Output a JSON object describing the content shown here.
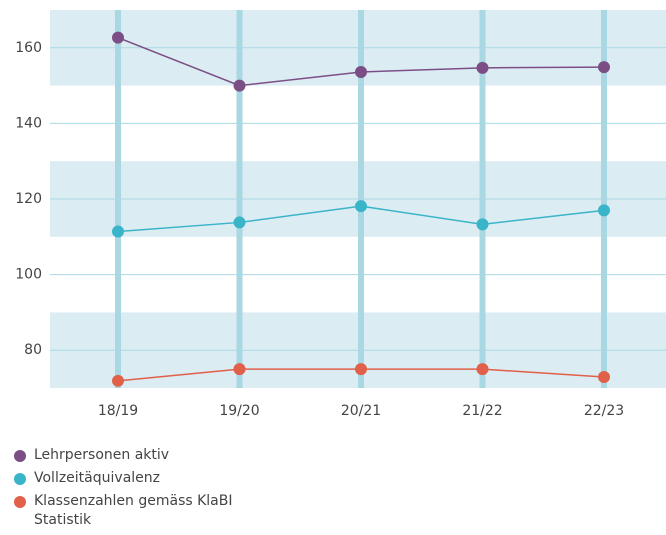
{
  "chart_data": {
    "type": "line",
    "categories": [
      "18/19",
      "19/20",
      "20/21",
      "21/22",
      "22/23"
    ],
    "series": [
      {
        "name": "Lehrpersonen aktiv",
        "color": "#7b4f86",
        "values": [
          162.7,
          150,
          153.6,
          154.7,
          154.9
        ]
      },
      {
        "name": "Vollzeitäquivalenz",
        "color": "#3ab4c8",
        "values": [
          111.4,
          113.8,
          118.1,
          113.3,
          117
        ]
      },
      {
        "name": "Klassenzahlen gemäss KlaBI Statistik",
        "color": "#e0604a",
        "values": [
          71.9,
          75,
          75,
          75,
          72.9
        ]
      }
    ],
    "ylim": [
      70,
      170
    ],
    "yticks": [
      80,
      100,
      120,
      140,
      160
    ],
    "grid": true,
    "legend": "bottom"
  }
}
